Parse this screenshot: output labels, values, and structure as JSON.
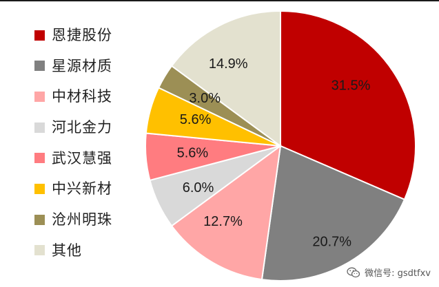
{
  "chart_data": {
    "type": "pie",
    "title": "",
    "categories": [
      "恩捷股份",
      "星源材质",
      "中材科技",
      "河北金力",
      "武汉慧强",
      "中兴新材",
      "沧州明珠",
      "其他"
    ],
    "values": [
      31.5,
      20.7,
      12.7,
      6.0,
      5.6,
      5.6,
      3.0,
      14.9
    ],
    "value_labels": [
      "31.5%",
      "20.7%",
      "12.7%",
      "6.0%",
      "5.6%",
      "5.6%",
      "3.0%",
      "14.9%"
    ],
    "colors": [
      "#c00000",
      "#808080",
      "#ffa6a6",
      "#d9d9d9",
      "#ff7c80",
      "#ffc000",
      "#9c8f55",
      "#e3e1cf"
    ],
    "start_direction": "top, clockwise",
    "legend_placement": "left"
  },
  "watermark": {
    "text": "微信号: gsdtfxv",
    "icon": "wechat-icon"
  }
}
